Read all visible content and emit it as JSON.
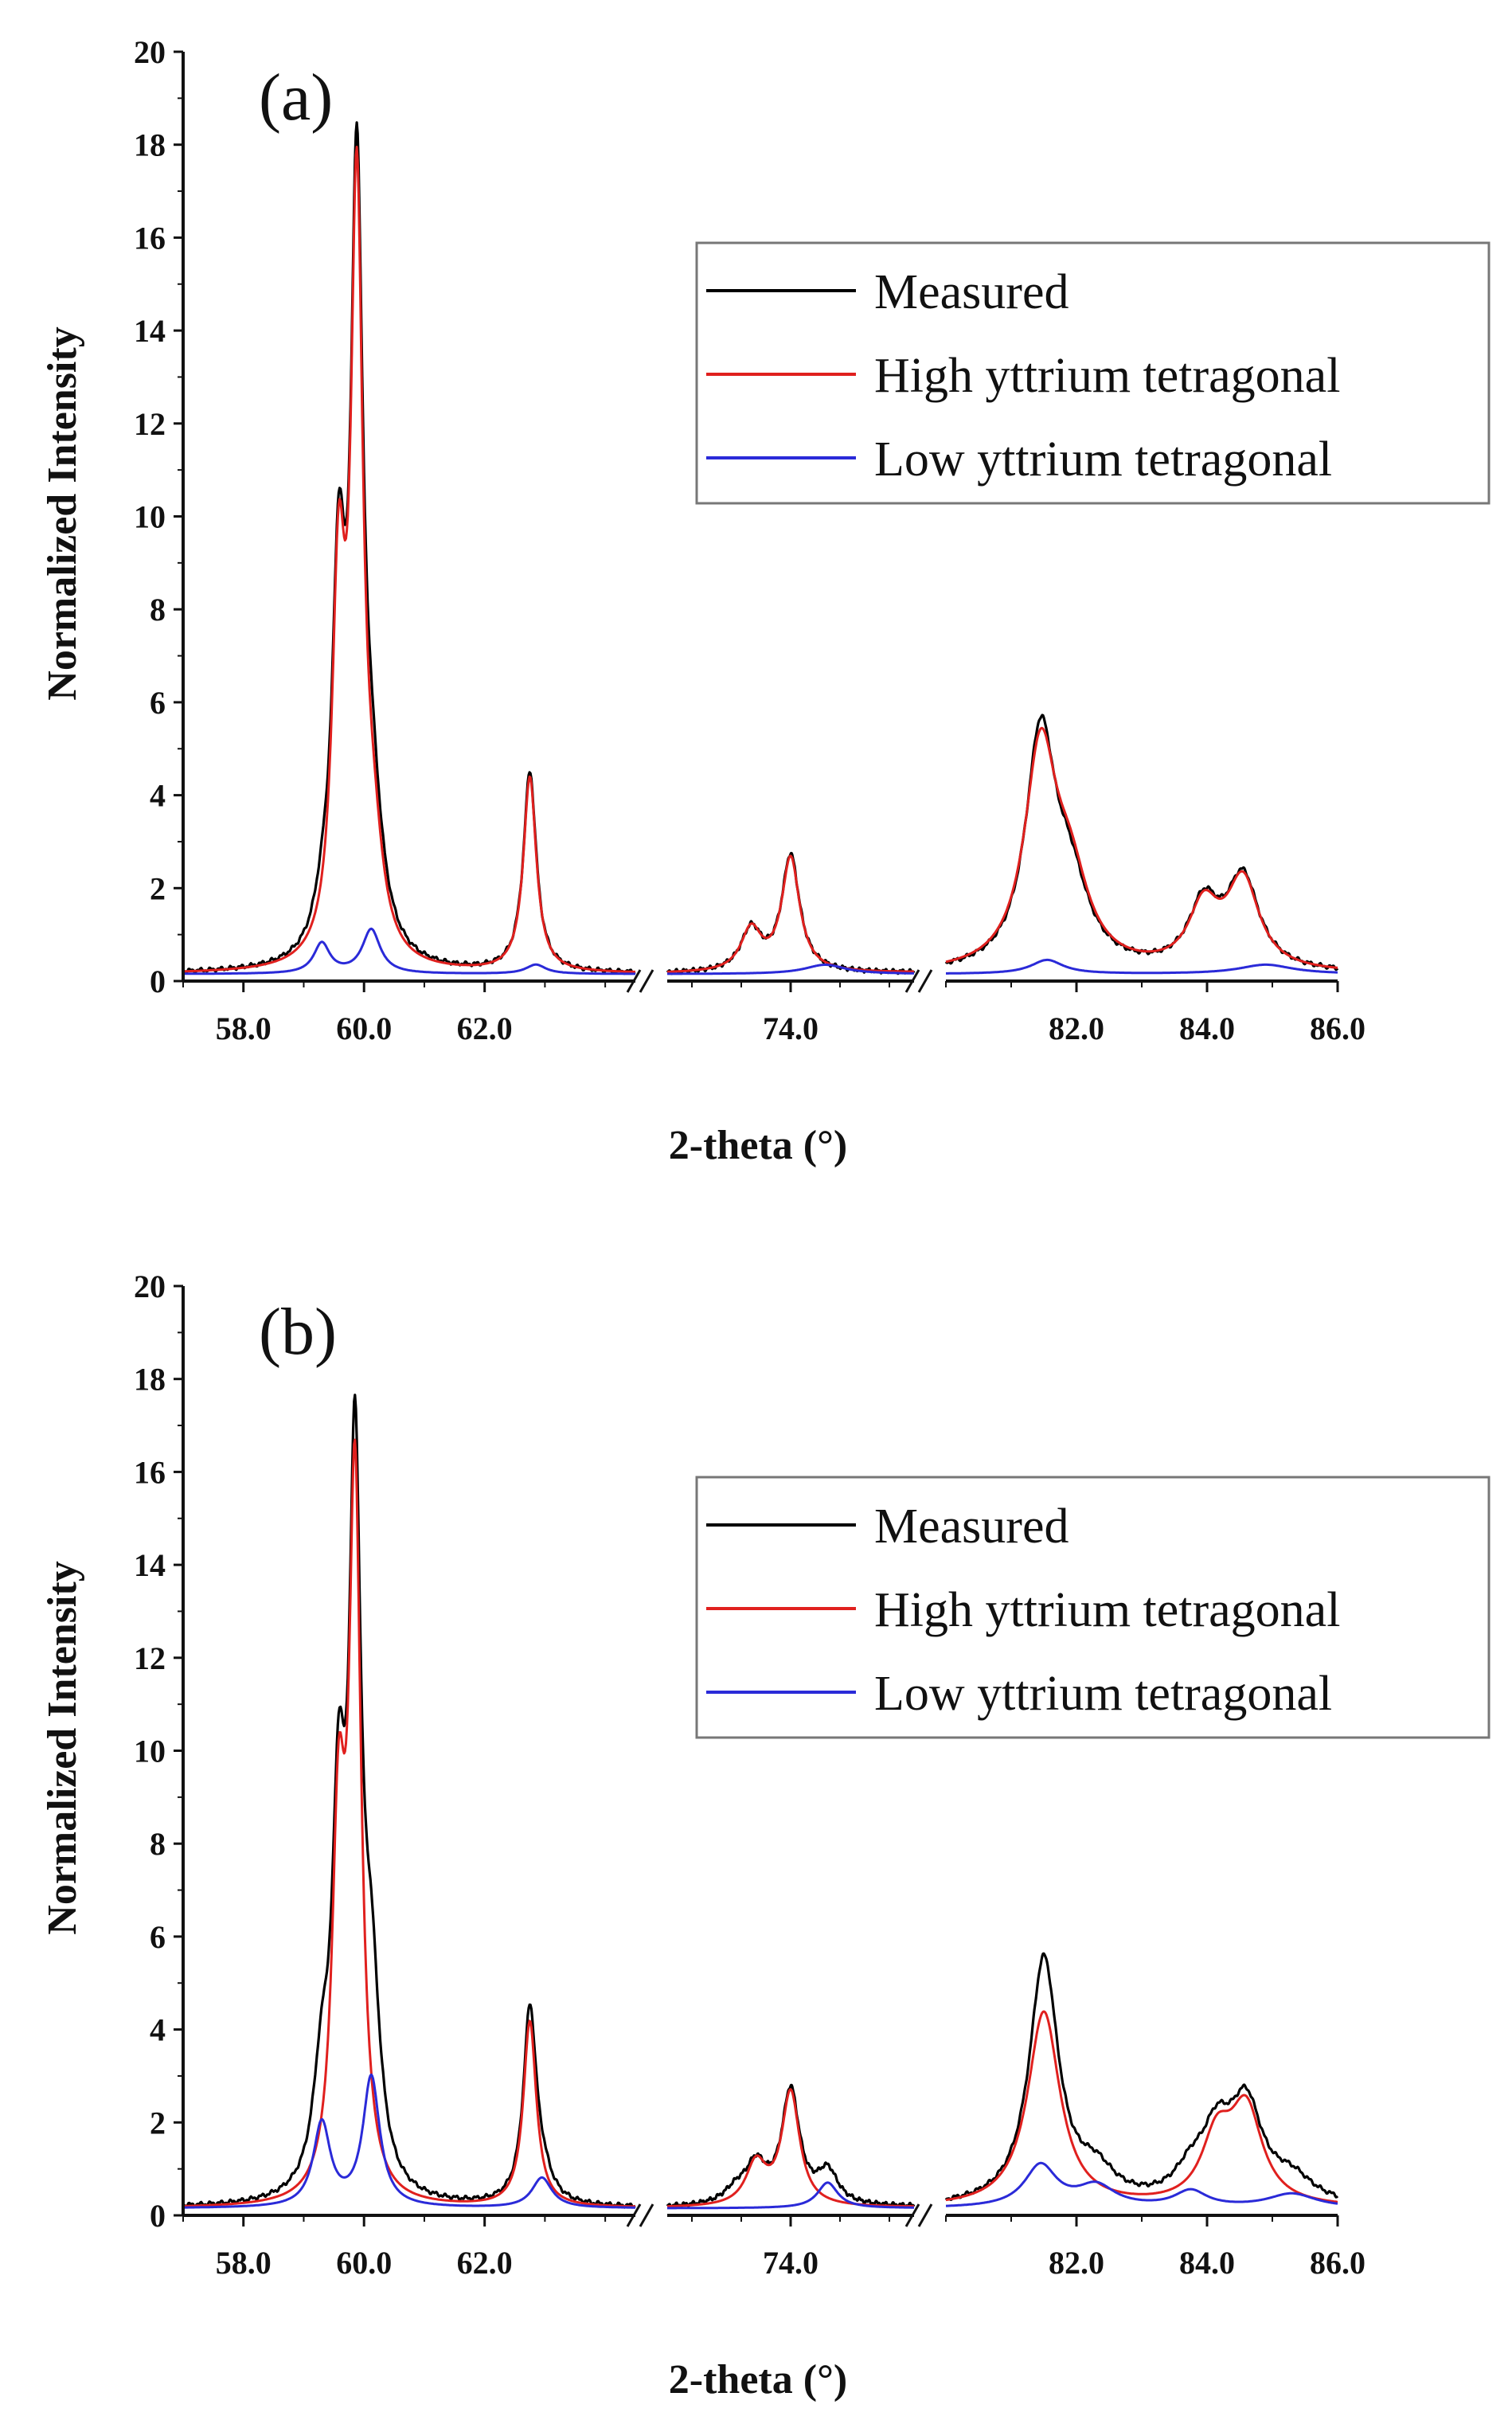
{
  "figure": {
    "background": "#ffffff",
    "colors": {
      "measured": "#000000",
      "high": "#e0201e",
      "low": "#2a2ad8",
      "axis": "#111111"
    }
  },
  "chart_data": [
    {
      "type": "line",
      "panel_label": "(a)",
      "xlabel": "2-theta (°)",
      "ylabel": "Normalized Intensity",
      "ylim": [
        0,
        20
      ],
      "y_ticks": [
        "0",
        "2",
        "4",
        "6",
        "8",
        "10",
        "12",
        "14",
        "16",
        "18",
        "20"
      ],
      "x_ticks": [
        "58.0",
        "60.0",
        "62.0",
        "74.0",
        "82.0",
        "84.0",
        "86.0"
      ],
      "x_segments": [
        [
          57.0,
          64.5
        ],
        [
          71.5,
          76.5
        ],
        [
          80.0,
          86.0
        ]
      ],
      "legend": [
        "Measured",
        "High yttrium tetragonal",
        "Low yttrium tetragonal"
      ],
      "baseline": 0.15,
      "series": [
        {
          "name": "Measured",
          "color": "#000000",
          "peaks": [
            [
              59.32,
              0.7,
              0.17
            ],
            [
              59.58,
              7.6,
              0.13
            ],
            [
              59.88,
              15.8,
              0.12
            ],
            [
              60.12,
              2.8,
              0.22
            ],
            [
              62.75,
              4.3,
              0.13
            ],
            [
              73.2,
              0.9,
              0.25
            ],
            [
              74.0,
              2.5,
              0.22
            ],
            [
              81.45,
              4.9,
              0.28
            ],
            [
              81.9,
              1.6,
              0.35
            ],
            [
              83.95,
              1.35,
              0.28
            ],
            [
              84.55,
              1.95,
              0.3
            ]
          ]
        },
        {
          "name": "High yttrium tetragonal",
          "color": "#e0201e",
          "peaks": [
            [
              59.58,
              7.7,
              0.13
            ],
            [
              59.88,
              15.9,
              0.12
            ],
            [
              60.15,
              1.9,
              0.2
            ],
            [
              62.75,
              4.2,
              0.13
            ],
            [
              73.2,
              0.9,
              0.25
            ],
            [
              74.0,
              2.45,
              0.22
            ],
            [
              81.45,
              4.6,
              0.3
            ],
            [
              81.9,
              1.7,
              0.35
            ],
            [
              83.95,
              1.3,
              0.28
            ],
            [
              84.55,
              1.9,
              0.3
            ]
          ]
        },
        {
          "name": "Low yttrium tetragonal",
          "color": "#2a2ad8",
          "peaks": [
            [
              59.3,
              0.65,
              0.16
            ],
            [
              60.12,
              0.95,
              0.18
            ],
            [
              62.85,
              0.2,
              0.2
            ],
            [
              74.7,
              0.2,
              0.5
            ],
            [
              81.55,
              0.3,
              0.3
            ],
            [
              84.9,
              0.2,
              0.5
            ]
          ]
        }
      ]
    },
    {
      "type": "line",
      "panel_label": "(b)",
      "xlabel": "2-theta (°)",
      "ylabel": "Normalized Intensity",
      "ylim": [
        0,
        20
      ],
      "y_ticks": [
        "0",
        "2",
        "4",
        "6",
        "8",
        "10",
        "12",
        "14",
        "16",
        "18",
        "20"
      ],
      "x_ticks": [
        "58.0",
        "60.0",
        "62.0",
        "74.0",
        "82.0",
        "84.0",
        "86.0"
      ],
      "x_segments": [
        [
          57.0,
          64.5
        ],
        [
          71.5,
          76.5
        ],
        [
          80.0,
          86.0
        ]
      ],
      "legend": [
        "Measured",
        "High yttrium tetragonal",
        "Low yttrium tetragonal"
      ],
      "baseline": 0.15,
      "series": [
        {
          "name": "Measured",
          "color": "#000000",
          "peaks": [
            [
              59.3,
              2.2,
              0.17
            ],
            [
              59.58,
              7.3,
              0.13
            ],
            [
              59.85,
              14.8,
              0.12
            ],
            [
              60.12,
              3.9,
              0.17
            ],
            [
              62.75,
              4.1,
              0.13
            ],
            [
              62.95,
              0.5,
              0.2
            ],
            [
              72.9,
              0.3,
              0.3
            ],
            [
              73.3,
              0.8,
              0.25
            ],
            [
              74.0,
              2.45,
              0.22
            ],
            [
              74.75,
              0.7,
              0.25
            ],
            [
              81.5,
              5.3,
              0.27
            ],
            [
              82.3,
              0.6,
              0.35
            ],
            [
              83.75,
              0.55,
              0.3
            ],
            [
              84.15,
              1.3,
              0.28
            ],
            [
              84.6,
              2.0,
              0.3
            ],
            [
              85.3,
              0.5,
              0.4
            ]
          ]
        },
        {
          "name": "High yttrium tetragonal",
          "color": "#e0201e",
          "peaks": [
            [
              59.58,
              7.6,
              0.13
            ],
            [
              59.85,
              15.1,
              0.12
            ],
            [
              62.75,
              4.0,
              0.13
            ],
            [
              73.3,
              0.9,
              0.25
            ],
            [
              74.0,
              2.45,
              0.22
            ],
            [
              81.5,
              4.2,
              0.3
            ],
            [
              84.15,
              1.35,
              0.28
            ],
            [
              84.6,
              2.0,
              0.3
            ]
          ]
        },
        {
          "name": "Low yttrium tetragonal",
          "color": "#2a2ad8",
          "peaks": [
            [
              59.3,
              1.8,
              0.17
            ],
            [
              60.12,
              2.8,
              0.17
            ],
            [
              62.95,
              0.65,
              0.2
            ],
            [
              74.75,
              0.55,
              0.25
            ],
            [
              81.45,
              0.9,
              0.3
            ],
            [
              82.3,
              0.45,
              0.35
            ],
            [
              83.75,
              0.35,
              0.3
            ],
            [
              85.3,
              0.3,
              0.45
            ]
          ]
        }
      ]
    }
  ]
}
